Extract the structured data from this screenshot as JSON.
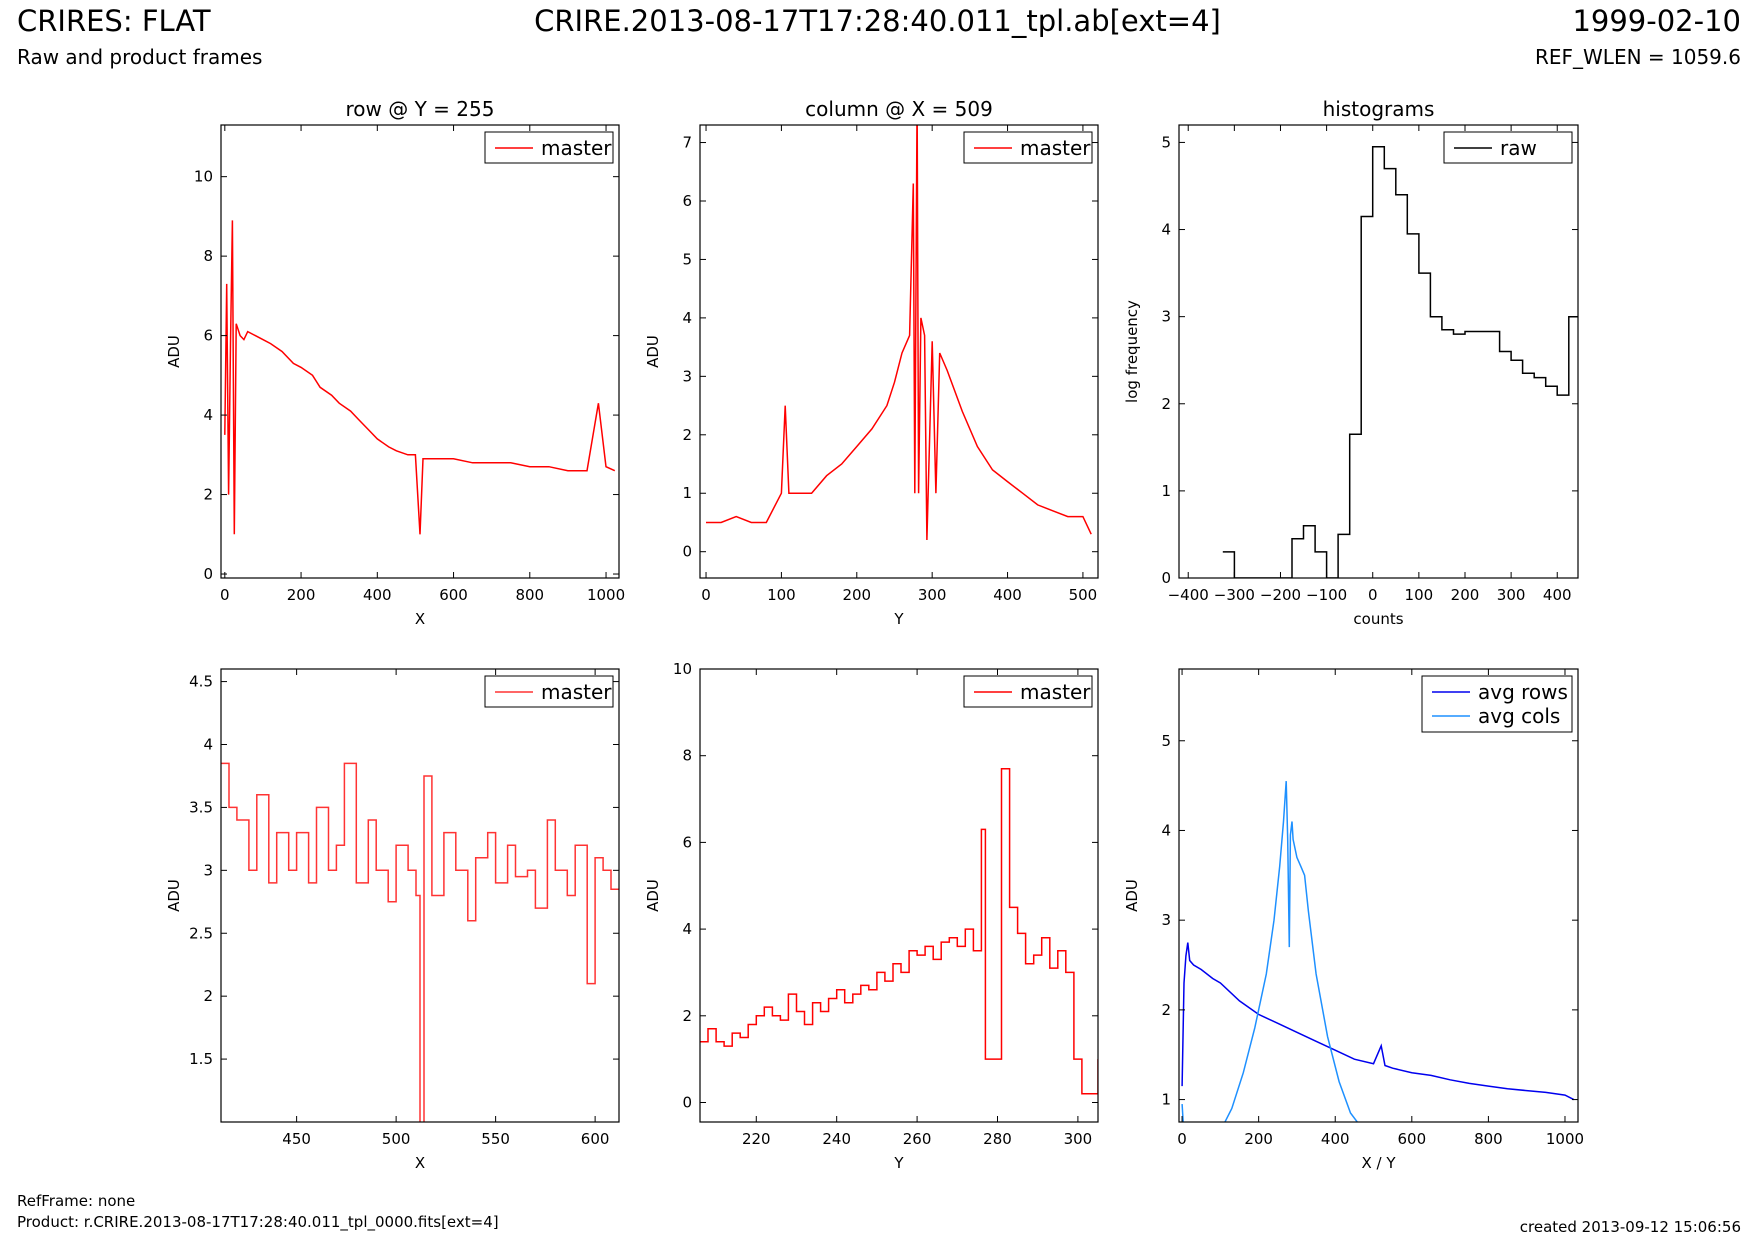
{
  "header": {
    "title": "CRIRES: FLAT",
    "file": "CRIRE.2013-08-17T17:28:40.011_tpl.ab[ext=4]",
    "date": "1999-02-10",
    "subtitle": "Raw and product frames",
    "ref_wlen": "REF_WLEN = 1059.6"
  },
  "footer": {
    "refframe": "RefFrame: none",
    "product": "Product: r.CRIRE.2013-08-17T17:28:40.011_tpl_0000.fits[ext=4]",
    "created": "created 2013-09-12 15:06:56"
  },
  "colors": {
    "master": "#ff0000",
    "master_zoom": "#ff3333",
    "raw": "#000000",
    "avg_rows": "#0000ee",
    "avg_cols": "#1e90ff"
  },
  "chart_data": [
    {
      "type": "line",
      "title": "row @ Y = 255",
      "xlabel": "X",
      "ylabel": "ADU",
      "xlim": [
        -10,
        1034
      ],
      "ylim": [
        -0.1,
        11.3
      ],
      "xticks": [
        0,
        200,
        400,
        600,
        800,
        1000
      ],
      "yticks": [
        0,
        2,
        4,
        6,
        8,
        10
      ],
      "legend": "top-right",
      "series": [
        {
          "name": "master",
          "color": "#ff0000",
          "x": [
            0,
            5,
            10,
            15,
            20,
            25,
            30,
            40,
            50,
            60,
            80,
            100,
            120,
            150,
            180,
            200,
            230,
            250,
            280,
            300,
            330,
            350,
            380,
            400,
            430,
            450,
            480,
            500,
            512,
            520,
            550,
            600,
            650,
            700,
            750,
            800,
            850,
            900,
            950,
            980,
            1000,
            1023
          ],
          "y": [
            3.5,
            7.3,
            2.0,
            5.8,
            8.9,
            1.0,
            6.3,
            6.0,
            5.9,
            6.1,
            6.0,
            5.9,
            5.8,
            5.6,
            5.3,
            5.2,
            5.0,
            4.7,
            4.5,
            4.3,
            4.1,
            3.9,
            3.6,
            3.4,
            3.2,
            3.1,
            3.0,
            3.0,
            1.0,
            2.9,
            2.9,
            2.9,
            2.8,
            2.8,
            2.8,
            2.7,
            2.7,
            2.6,
            2.6,
            4.3,
            2.7,
            2.6
          ]
        }
      ]
    },
    {
      "type": "line",
      "title": "column @ X = 509",
      "xlabel": "Y",
      "ylabel": "ADU",
      "xlim": [
        -8,
        520
      ],
      "ylim": [
        -0.45,
        7.3
      ],
      "xticks": [
        0,
        100,
        200,
        300,
        400,
        500
      ],
      "yticks": [
        0,
        1,
        2,
        3,
        4,
        5,
        6,
        7
      ],
      "legend": "top-right",
      "series": [
        {
          "name": "master",
          "color": "#ff0000",
          "x": [
            0,
            20,
            40,
            60,
            80,
            100,
            105,
            110,
            120,
            140,
            160,
            180,
            200,
            220,
            240,
            250,
            260,
            270,
            275,
            277,
            280,
            282,
            285,
            290,
            293,
            300,
            305,
            310,
            320,
            340,
            360,
            380,
            400,
            420,
            440,
            460,
            480,
            500,
            511
          ],
          "y": [
            0.5,
            0.5,
            0.6,
            0.5,
            0.5,
            1.0,
            2.5,
            1.0,
            1.0,
            1.0,
            1.3,
            1.5,
            1.8,
            2.1,
            2.5,
            2.9,
            3.4,
            3.7,
            6.3,
            1.0,
            7.8,
            1.0,
            4.0,
            3.7,
            0.2,
            3.6,
            1.0,
            3.4,
            3.1,
            2.4,
            1.8,
            1.4,
            1.2,
            1.0,
            0.8,
            0.7,
            0.6,
            0.6,
            0.3
          ]
        }
      ]
    },
    {
      "type": "line",
      "title": "histograms",
      "xlabel": "counts",
      "ylabel": "log frequency",
      "xlim": [
        -420,
        445
      ],
      "ylim": [
        0,
        5.2
      ],
      "xticks": [
        -400,
        -300,
        -200,
        -100,
        0,
        100,
        200,
        300,
        400
      ],
      "yticks": [
        0,
        1,
        2,
        3,
        4,
        5
      ],
      "legend": "top-right",
      "series": [
        {
          "name": "raw",
          "color": "#000000",
          "step": true,
          "x": [
            -325,
            -300,
            -200,
            -175,
            -150,
            -125,
            -100,
            -75,
            -50,
            -25,
            0,
            25,
            50,
            75,
            100,
            125,
            150,
            175,
            200,
            250,
            275,
            300,
            325,
            350,
            375,
            400,
            425,
            445
          ],
          "y": [
            0.3,
            0,
            0,
            0.45,
            0.6,
            0.3,
            0,
            0.5,
            1.65,
            4.15,
            4.95,
            4.7,
            4.4,
            3.95,
            3.5,
            3.0,
            2.85,
            2.8,
            2.83,
            2.83,
            2.6,
            2.5,
            2.35,
            2.3,
            2.2,
            2.1,
            3.0,
            3.0
          ]
        }
      ]
    },
    {
      "type": "line",
      "title": "",
      "xlabel": "X",
      "ylabel": "ADU",
      "xlim": [
        412,
        612
      ],
      "ylim": [
        1.0,
        4.6
      ],
      "xticks": [
        450,
        500,
        550,
        600
      ],
      "yticks": [
        1.5,
        2.0,
        2.5,
        3.0,
        3.5,
        4.0,
        4.5
      ],
      "legend": "top-right",
      "series": [
        {
          "name": "master",
          "color": "#ff3333",
          "step": true,
          "x": [
            412,
            416,
            420,
            426,
            430,
            436,
            440,
            446,
            450,
            456,
            460,
            466,
            470,
            474,
            480,
            486,
            490,
            496,
            500,
            506,
            510,
            512,
            514,
            518,
            524,
            530,
            536,
            540,
            546,
            550,
            556,
            560,
            566,
            570,
            576,
            580,
            586,
            590,
            596,
            600,
            604,
            608,
            612
          ],
          "y": [
            3.85,
            3.5,
            3.4,
            3.0,
            3.6,
            2.9,
            3.3,
            3.0,
            3.3,
            2.9,
            3.5,
            3.0,
            3.2,
            3.85,
            2.9,
            3.4,
            3.0,
            2.75,
            3.2,
            3.0,
            2.8,
            0.6,
            3.75,
            2.8,
            3.3,
            3.0,
            2.6,
            3.1,
            3.3,
            2.9,
            3.2,
            2.95,
            3.0,
            2.7,
            3.4,
            3.0,
            2.8,
            3.2,
            2.1,
            3.1,
            3.0,
            2.85,
            2.85
          ]
        }
      ]
    },
    {
      "type": "line",
      "title": "",
      "xlabel": "Y",
      "ylabel": "ADU",
      "xlim": [
        206,
        305
      ],
      "ylim": [
        -0.45,
        10.0
      ],
      "xticks": [
        220,
        240,
        260,
        280,
        300
      ],
      "yticks": [
        0,
        2,
        4,
        6,
        8,
        10
      ],
      "legend": "top-right",
      "series": [
        {
          "name": "master",
          "color": "#ff0000",
          "step": true,
          "x": [
            206,
            208,
            210,
            212,
            214,
            216,
            218,
            220,
            222,
            224,
            226,
            228,
            230,
            232,
            234,
            236,
            238,
            240,
            242,
            244,
            246,
            248,
            250,
            252,
            254,
            256,
            258,
            260,
            262,
            264,
            266,
            268,
            270,
            272,
            274,
            276,
            277,
            279,
            281,
            283,
            285,
            287,
            289,
            291,
            293,
            295,
            297,
            299,
            301,
            305
          ],
          "y": [
            1.4,
            1.7,
            1.4,
            1.3,
            1.6,
            1.5,
            1.8,
            2.0,
            2.2,
            2.0,
            1.9,
            2.5,
            2.1,
            1.8,
            2.3,
            2.1,
            2.4,
            2.6,
            2.3,
            2.5,
            2.7,
            2.6,
            3.0,
            2.8,
            3.2,
            3.0,
            3.5,
            3.4,
            3.6,
            3.3,
            3.7,
            3.8,
            3.6,
            4.0,
            3.5,
            6.3,
            1.0,
            1.0,
            7.7,
            4.5,
            3.9,
            3.2,
            3.4,
            3.8,
            3.1,
            3.5,
            3.0,
            1.0,
            0.2,
            1.0
          ]
        }
      ]
    },
    {
      "type": "line",
      "title": "",
      "xlabel": "X / Y",
      "ylabel": "ADU",
      "xlim": [
        -8,
        1034
      ],
      "ylim": [
        0.75,
        5.8
      ],
      "xticks": [
        0,
        200,
        400,
        600,
        800,
        1000
      ],
      "yticks": [
        1,
        2,
        3,
        4,
        5
      ],
      "legend": "top-right",
      "series": [
        {
          "name": "avg rows",
          "color": "#0000ee",
          "x": [
            0,
            5,
            10,
            15,
            20,
            30,
            50,
            80,
            100,
            150,
            200,
            250,
            300,
            350,
            400,
            450,
            500,
            520,
            530,
            550,
            600,
            650,
            700,
            750,
            800,
            850,
            900,
            950,
            1000,
            1023
          ],
          "y": [
            1.15,
            2.3,
            2.6,
            2.75,
            2.55,
            2.5,
            2.45,
            2.35,
            2.3,
            2.1,
            1.95,
            1.85,
            1.75,
            1.65,
            1.55,
            1.45,
            1.4,
            1.6,
            1.38,
            1.35,
            1.3,
            1.27,
            1.22,
            1.18,
            1.15,
            1.12,
            1.1,
            1.08,
            1.05,
            1.0
          ]
        },
        {
          "name": "avg cols",
          "color": "#1e90ff",
          "x": [
            0,
            5,
            20,
            50,
            80,
            100,
            130,
            160,
            190,
            220,
            240,
            255,
            265,
            272,
            276,
            280,
            283,
            287,
            290,
            300,
            310,
            320,
            330,
            350,
            380,
            410,
            440,
            470,
            500,
            511
          ],
          "y": [
            0.95,
            0.6,
            0.55,
            0.55,
            0.58,
            0.65,
            0.9,
            1.3,
            1.8,
            2.4,
            3.0,
            3.6,
            4.1,
            4.55,
            3.9,
            2.7,
            3.95,
            4.1,
            3.9,
            3.7,
            3.6,
            3.5,
            3.1,
            2.4,
            1.7,
            1.2,
            0.85,
            0.68,
            0.6,
            0.65
          ]
        }
      ]
    }
  ]
}
